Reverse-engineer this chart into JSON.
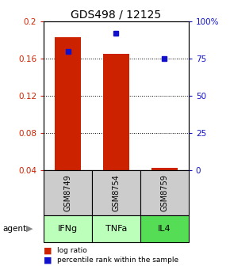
{
  "title": "GDS498 / 12125",
  "samples": [
    "GSM8749",
    "GSM8754",
    "GSM8759"
  ],
  "agents": [
    "IFNg",
    "TNFa",
    "IL4"
  ],
  "log_ratios": [
    0.183,
    0.165,
    0.043
  ],
  "percentile_ranks": [
    80,
    92,
    75
  ],
  "ylim_left": [
    0.04,
    0.2
  ],
  "ylim_right": [
    0,
    100
  ],
  "yticks_left": [
    0.04,
    0.08,
    0.12,
    0.16,
    0.2
  ],
  "yticks_right": [
    0,
    25,
    50,
    75,
    100
  ],
  "ytick_labels_right": [
    "0",
    "25",
    "50",
    "75",
    "100%"
  ],
  "bar_color": "#cc2200",
  "dot_color": "#1111cc",
  "cell_gray": "#cccccc",
  "agent_colors": [
    "#bbffbb",
    "#bbffbb",
    "#55dd55"
  ],
  "legend_bar_label": "log ratio",
  "legend_dot_label": "percentile rank within the sample",
  "title_fontsize": 10,
  "axis_fontsize": 7.5,
  "cell_fontsize": 7,
  "agent_fontsize": 8
}
